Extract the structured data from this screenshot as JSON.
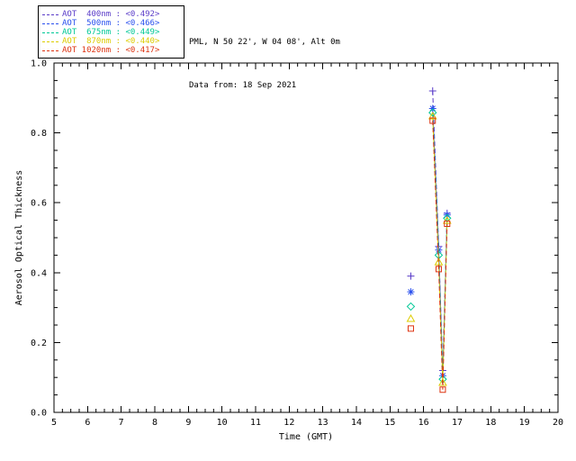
{
  "header": {
    "station": "PML, N 50 22', W 04 08', Alt 0m",
    "date_line": "Data from: 18 Sep 2021"
  },
  "legend": {
    "items": [
      {
        "text": "AOT  400nm : <0.492>",
        "color": "#5a3cc8"
      },
      {
        "text": "AOT  500nm : <0.466>",
        "color": "#2a50ee"
      },
      {
        "text": "AOT  675nm : <0.449>",
        "color": "#00c896"
      },
      {
        "text": "AOT  870nm : <0.440>",
        "color": "#ddcc00"
      },
      {
        "text": "AOT 1020nm : <0.417>",
        "color": "#dd3311"
      }
    ]
  },
  "chart_data": {
    "type": "scatter",
    "title": "",
    "xlabel": "Time (GMT)",
    "ylabel": "Aerosol Optical Thickness",
    "xlim": [
      5,
      20
    ],
    "ylim": [
      0.0,
      1.0
    ],
    "x_ticks": [
      5,
      6,
      7,
      8,
      9,
      10,
      11,
      12,
      13,
      14,
      15,
      16,
      17,
      18,
      19,
      20
    ],
    "y_ticks": [
      0.0,
      0.2,
      0.4,
      0.6,
      0.8,
      1.0
    ],
    "grid": false,
    "legend_position": "top-left",
    "series": [
      {
        "name": "AOT 400nm",
        "mean": 0.492,
        "color": "#5a3cc8",
        "symbol": "plus",
        "isolated_points": [
          [
            15.62,
            0.39
          ]
        ],
        "line_points": [
          [
            16.27,
            0.92
          ],
          [
            16.45,
            0.475
          ],
          [
            16.57,
            0.12
          ],
          [
            16.7,
            0.57
          ]
        ]
      },
      {
        "name": "AOT 500nm",
        "mean": 0.466,
        "color": "#2a50ee",
        "symbol": "asterisk",
        "isolated_points": [
          [
            15.62,
            0.345
          ]
        ],
        "line_points": [
          [
            16.27,
            0.87
          ],
          [
            16.45,
            0.465
          ],
          [
            16.57,
            0.105
          ],
          [
            16.7,
            0.565
          ]
        ]
      },
      {
        "name": "AOT 675nm",
        "mean": 0.449,
        "color": "#00c896",
        "symbol": "diamond",
        "isolated_points": [
          [
            15.62,
            0.303
          ]
        ],
        "line_points": [
          [
            16.27,
            0.858
          ],
          [
            16.45,
            0.45
          ],
          [
            16.57,
            0.095
          ],
          [
            16.7,
            0.556
          ]
        ]
      },
      {
        "name": "AOT 870nm",
        "mean": 0.44,
        "color": "#ddcc00",
        "symbol": "triangle",
        "isolated_points": [
          [
            15.62,
            0.268
          ]
        ],
        "line_points": [
          [
            16.27,
            0.848
          ],
          [
            16.45,
            0.43
          ],
          [
            16.57,
            0.085
          ],
          [
            16.7,
            0.549
          ]
        ]
      },
      {
        "name": "AOT 1020nm",
        "mean": 0.417,
        "color": "#dd3311",
        "symbol": "square",
        "isolated_points": [
          [
            15.62,
            0.24
          ]
        ],
        "line_points": [
          [
            16.27,
            0.835
          ],
          [
            16.45,
            0.41
          ],
          [
            16.57,
            0.065
          ],
          [
            16.7,
            0.54
          ]
        ]
      }
    ]
  }
}
